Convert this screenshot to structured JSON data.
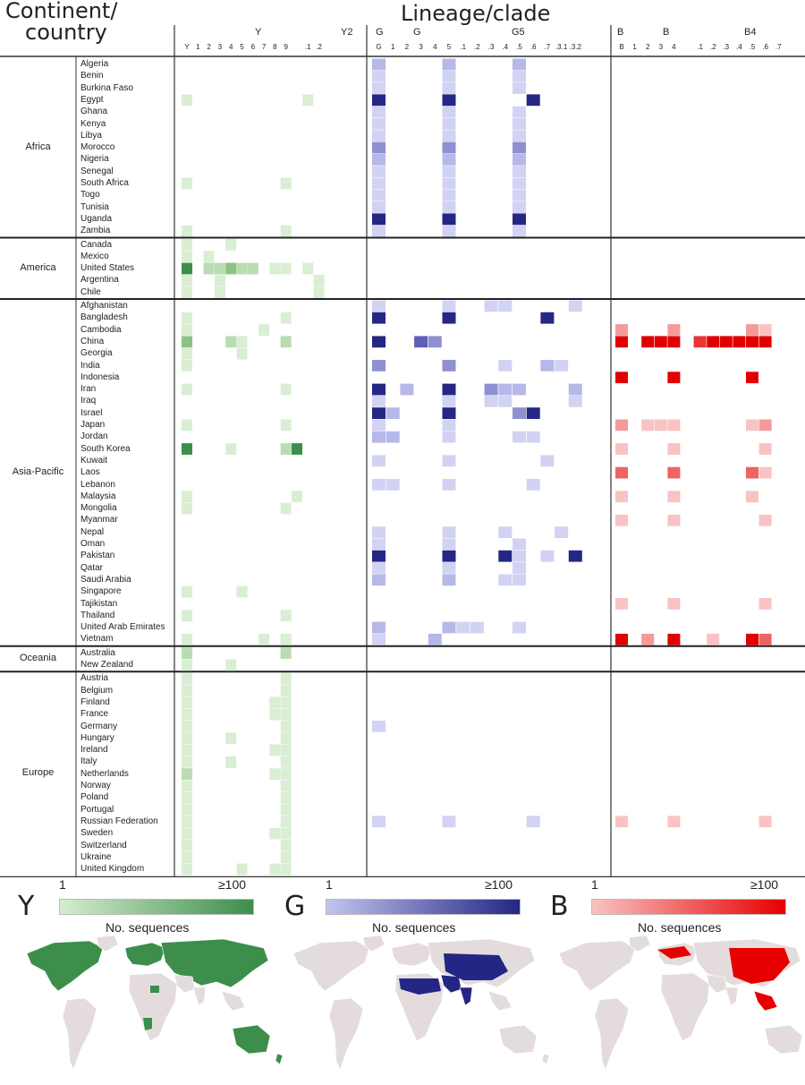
{
  "headers": {
    "left_title_line1": "Continent/",
    "left_title_line2": "country",
    "right_title": "Lineage/clade"
  },
  "column_groups": {
    "Y": {
      "group_labels": [
        "Y",
        "Y2"
      ],
      "sub_labels": [
        "Y",
        "1",
        "2",
        "3",
        "4",
        "5",
        "6",
        "7",
        "8",
        "9",
        ".1",
        ".2"
      ]
    },
    "G": {
      "group_labels": [
        "G",
        "G",
        "G5"
      ],
      "sub_labels": [
        "G",
        "1",
        "2",
        "3",
        "4",
        "5",
        ".1",
        ".2",
        ".3",
        ".4",
        ".5",
        ".6",
        ".7",
        ".3.1",
        ".3.2"
      ]
    },
    "B": {
      "group_labels": [
        "B",
        "B",
        "B4"
      ],
      "sub_labels": [
        "B",
        "1",
        "2",
        "3",
        "4",
        ".1",
        ".2",
        ".3",
        ".4",
        ".5",
        ".6",
        ".7"
      ]
    }
  },
  "continents": [
    {
      "name": "Africa",
      "countries": [
        "Algeria",
        "Benin",
        "Burkina Faso",
        "Egypt",
        "Ghana",
        "Kenya",
        "Libya",
        "Morocco",
        "Nigeria",
        "Senegal",
        "South Africa",
        "Togo",
        "Tunisia",
        "Uganda",
        "Zambia"
      ]
    },
    {
      "name": "America",
      "countries": [
        "Canada",
        "Mexico",
        "United States",
        "Argentina",
        "Chile"
      ]
    },
    {
      "name": "Asia-Pacific",
      "countries": [
        "Afghanistan",
        "Bangladesh",
        "Cambodia",
        "China",
        "Georgia",
        "India",
        "Indonesia",
        "Iran",
        "Iraq",
        "Israel",
        "Japan",
        "Jordan",
        "South Korea",
        "Kuwait",
        "Laos",
        "Lebanon",
        "Malaysia",
        "Mongolia",
        "Myanmar",
        "Nepal",
        "Oman",
        "Pakistan",
        "Qatar",
        "Saudi Arabia",
        "Singapore",
        "Tajikistan",
        "Thailand",
        "United Arab Emirates",
        "Vietnam"
      ]
    },
    {
      "name": "Oceania",
      "countries": [
        "Australia",
        "New Zealand"
      ]
    },
    {
      "name": "Europe",
      "countries": [
        "Austria",
        "Belgium",
        "Finland",
        "France",
        "Germany",
        "Hungary",
        "Ireland",
        "Italy",
        "Netherlands",
        "Norway",
        "Poland",
        "Portugal",
        "Russian Federation",
        "Sweden",
        "Switzerland",
        "Ukraine",
        "United Kingdom"
      ]
    }
  ],
  "chart_data": {
    "type": "heatmap",
    "scale": {
      "min_label": "1",
      "max_label": "≥100"
    },
    "Y": {
      "Egypt": {
        "0": 1,
        "11": 1
      },
      "South Africa": {
        "0": 1,
        "9": 1
      },
      "Zambia": {
        "0": 1,
        "9": 1
      },
      "Canada": {
        "0": 1,
        "4": 1
      },
      "Mexico": {
        "0": 1,
        "2": 1
      },
      "United States": {
        "0": 4,
        "2": 2,
        "3": 2,
        "4": 3,
        "5": 2,
        "6": 2,
        "8": 1,
        "9": 1,
        "11": 1
      },
      "Argentina": {
        "0": 1,
        "3": 1,
        "12": 1
      },
      "Chile": {
        "0": 1,
        "3": 1,
        "12": 1
      },
      "Bangladesh": {
        "0": 1,
        "9": 1
      },
      "Cambodia": {
        "0": 1,
        "7": 1
      },
      "China": {
        "0": 3,
        "4": 2,
        "5": 1,
        "9": 2
      },
      "Georgia": {
        "0": 1,
        "5": 1
      },
      "India": {
        "0": 1
      },
      "Iran": {
        "0": 1,
        "9": 1
      },
      "Japan": {
        "0": 1,
        "9": 1
      },
      "South Korea": {
        "0": 4,
        "4": 1,
        "9": 2,
        "10": 4
      },
      "Malaysia": {
        "0": 1,
        "10": 1
      },
      "Mongolia": {
        "0": 1,
        "9": 1
      },
      "Singapore": {
        "0": 1,
        "5": 1
      },
      "Thailand": {
        "0": 1,
        "9": 1
      },
      "Vietnam": {
        "0": 1,
        "7": 1,
        "9": 1
      },
      "Australia": {
        "0": 2,
        "9": 2
      },
      "New Zealand": {
        "0": 1,
        "4": 1
      },
      "Austria": {
        "0": 1,
        "9": 1
      },
      "Belgium": {
        "0": 1,
        "9": 1
      },
      "Finland": {
        "0": 1,
        "8": 1,
        "9": 1
      },
      "France": {
        "0": 1,
        "8": 1,
        "9": 1
      },
      "Germany": {
        "0": 1,
        "9": 1
      },
      "Hungary": {
        "0": 1,
        "4": 1,
        "9": 1
      },
      "Ireland": {
        "0": 1,
        "8": 1,
        "9": 1
      },
      "Italy": {
        "0": 1,
        "4": 1,
        "9": 1
      },
      "Netherlands": {
        "0": 2,
        "8": 1,
        "9": 1
      },
      "Norway": {
        "0": 1,
        "9": 1
      },
      "Poland": {
        "0": 1,
        "9": 1
      },
      "Portugal": {
        "0": 1,
        "9": 1
      },
      "Russian Federation": {
        "0": 1,
        "9": 1
      },
      "Sweden": {
        "0": 1,
        "8": 1,
        "9": 1
      },
      "Switzerland": {
        "0": 1,
        "9": 1
      },
      "Ukraine": {
        "0": 1,
        "9": 1
      },
      "United Kingdom": {
        "0": 1,
        "5": 1,
        "8": 1,
        "9": 1
      }
    },
    "G": {
      "Algeria": {
        "0": 2,
        "5": 2,
        "10": 2
      },
      "Benin": {
        "0": 1,
        "5": 1,
        "10": 1
      },
      "Burkina Faso": {
        "0": 1,
        "5": 1,
        "10": 1
      },
      "Egypt": {
        "0": 5,
        "5": 5,
        "11": 5
      },
      "Ghana": {
        "0": 1,
        "5": 1,
        "10": 1
      },
      "Kenya": {
        "0": 1,
        "5": 1,
        "10": 1
      },
      "Libya": {
        "0": 1,
        "5": 1,
        "10": 1
      },
      "Morocco": {
        "0": 3,
        "5": 3,
        "10": 3
      },
      "Nigeria": {
        "0": 2,
        "5": 2,
        "10": 2
      },
      "Senegal": {
        "0": 1,
        "5": 1,
        "10": 1
      },
      "South Africa": {
        "0": 1,
        "5": 1,
        "10": 1
      },
      "Togo": {
        "0": 1,
        "5": 1,
        "10": 1
      },
      "Tunisia": {
        "0": 1,
        "5": 1,
        "10": 1
      },
      "Uganda": {
        "0": 5,
        "5": 5,
        "10": 5
      },
      "Zambia": {
        "0": 1,
        "5": 1,
        "10": 1
      },
      "Afghanistan": {
        "0": 1,
        "5": 1,
        "8": 1,
        "9": 1,
        "14": 1
      },
      "Bangladesh": {
        "0": 5,
        "5": 5,
        "12": 5
      },
      "China": {
        "0": 5,
        "4": 3,
        "3": 4
      },
      "India": {
        "0": 3,
        "5": 3,
        "9": 1,
        "12": 2,
        "13": 1
      },
      "Iran": {
        "0": 5,
        "2": 2,
        "5": 5,
        "8": 3,
        "9": 2,
        "10": 2,
        "14": 2
      },
      "Iraq": {
        "0": 1,
        "5": 1,
        "8": 1,
        "9": 1,
        "14": 1
      },
      "Israel": {
        "0": 5,
        "1": 2,
        "5": 5,
        "10": 3,
        "11": 5
      },
      "Japan": {
        "0": 1,
        "5": 1
      },
      "Jordan": {
        "0": 2,
        "1": 2,
        "5": 1,
        "10": 1,
        "11": 1
      },
      "Kuwait": {
        "0": 1,
        "5": 1,
        "12": 1
      },
      "Lebanon": {
        "0": 1,
        "1": 1,
        "5": 1,
        "11": 1
      },
      "Nepal": {
        "0": 1,
        "5": 1,
        "9": 1,
        "13": 1
      },
      "Oman": {
        "0": 1,
        "5": 1,
        "10": 1
      },
      "Pakistan": {
        "0": 5,
        "5": 5,
        "9": 5,
        "10": 1,
        "12": 1,
        "14": 5
      },
      "Qatar": {
        "0": 1,
        "5": 1,
        "10": 1
      },
      "Saudi Arabia": {
        "0": 2,
        "5": 2,
        "9": 1,
        "10": 1
      },
      "United Arab Emirates": {
        "0": 2,
        "5": 2,
        "6": 1,
        "7": 1,
        "10": 1
      },
      "Vietnam": {
        "0": 1,
        "4": 2
      },
      "Germany": {
        "0": 1
      },
      "Russian Federation": {
        "0": 1,
        "5": 1,
        "11": 1
      }
    },
    "B": {
      "Cambodia": {
        "0": 2,
        "4": 2,
        "10": 2,
        "11": 1
      },
      "China": {
        "0": 5,
        "2": 5,
        "3": 5,
        "4": 5,
        "6": 4,
        "7": 5,
        "8": 5,
        "9": 5,
        "10": 5,
        "11": 5
      },
      "Indonesia": {
        "0": 5,
        "4": 5,
        "10": 5
      },
      "Japan": {
        "0": 2,
        "2": 1,
        "3": 1,
        "4": 1,
        "10": 1,
        "11": 2
      },
      "South Korea": {
        "0": 1,
        "4": 1,
        "11": 1
      },
      "Laos": {
        "0": 3,
        "4": 3,
        "10": 3,
        "11": 1
      },
      "Malaysia": {
        "0": 1,
        "4": 1,
        "10": 1
      },
      "Myanmar": {
        "0": 1,
        "4": 1,
        "11": 1
      },
      "Tajikistan": {
        "0": 1,
        "4": 1,
        "11": 1
      },
      "Vietnam": {
        "0": 5,
        "2": 2,
        "4": 5,
        "7": 1,
        "10": 5,
        "11": 3
      },
      "Russian Federation": {
        "0": 1,
        "4": 1,
        "11": 1
      }
    }
  },
  "legend": [
    {
      "letter": "Y",
      "caption": "No. sequences",
      "color_start": "#d6ecd0",
      "color_end": "#3c8e4a"
    },
    {
      "letter": "G",
      "caption": "No. sequences",
      "color_start": "#c2c4ee",
      "color_end": "#232685"
    },
    {
      "letter": "B",
      "caption": "No. sequences",
      "color_start": "#fac2c2",
      "color_end": "#e60000"
    }
  ],
  "colors": {
    "Y": [
      "#d9eed3",
      "#b9dcb0",
      "#8cc384",
      "#3c8e4a"
    ],
    "G": [
      "#d2d3f3",
      "#b6b8e8",
      "#8e90d0",
      "#5d60b4",
      "#242784"
    ],
    "B": [
      "#f9c3c3",
      "#f59a9a",
      "#ee6363",
      "#e83535",
      "#e00000"
    ],
    "map_base": "#e4dcdc"
  }
}
